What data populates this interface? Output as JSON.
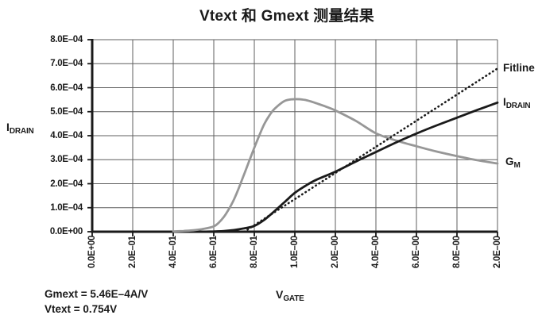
{
  "title": "Vtext 和 Gmext 测量结果",
  "colors": {
    "text": "#1a1a1a",
    "grid": "#5f5f5f",
    "axis": "#1a1a1a",
    "idrain_curve": "#1a1a1a",
    "gm_curve": "#979797",
    "fitline": "#1a1a1a",
    "background": "#ffffff"
  },
  "y_axis": {
    "label_main": "I",
    "label_sub": "DRAIN"
  },
  "x_axis": {
    "label_main": "V",
    "label_sub": "GATE"
  },
  "legend": [
    {
      "id": "fitline",
      "main": "Fitline",
      "sub": ""
    },
    {
      "id": "idrain",
      "main": "I",
      "sub": "DRAIN"
    },
    {
      "id": "gm",
      "main": "G",
      "sub": "M"
    }
  ],
  "annotations": {
    "gmext_line": "Gmext = 5.46E–4A/V",
    "vtext_line": "Vtext = 0.754V"
  },
  "chart_data": {
    "type": "line",
    "title": "Vtext 和 Gmext 测量结果",
    "xlabel": "V_GATE",
    "ylabel": "I_DRAIN",
    "xlim": [
      0.0,
      2.0
    ],
    "ylim": [
      0.0,
      0.0008
    ],
    "grid": true,
    "legend_position": "right-outside",
    "x_tick_labels": [
      "0.0E+00",
      "2.0E–01",
      "4.0E–01",
      "6.0E–01",
      "8.0E–01",
      "1.0E–00",
      "2.0E–00",
      "4.0E–00",
      "6.0E–00",
      "8.0E–00",
      "2.0E–00"
    ],
    "y_tick_labels": [
      "0.0E+00",
      "1.0E–04",
      "2.0E–04",
      "3.0E–04",
      "4.0E–04",
      "5.0E–04",
      "6.0E–04",
      "7.0E–04",
      "8.0E–04"
    ],
    "series": [
      {
        "name": "GM",
        "style": "solid",
        "color": "#979797",
        "x": [
          0.4,
          0.45,
          0.5,
          0.55,
          0.6,
          0.625,
          0.65,
          0.675,
          0.7,
          0.725,
          0.75,
          0.775,
          0.8,
          0.825,
          0.85,
          0.875,
          0.9,
          0.95,
          1.0,
          1.05,
          1.1,
          1.15,
          1.2,
          1.3,
          1.4,
          1.5,
          1.6,
          1.7,
          1.8,
          1.9,
          2.0
        ],
        "y": [
          1e-06,
          3e-06,
          6e-06,
          1.2e-05,
          2.2e-05,
          3.8e-05,
          6.2e-05,
          9.5e-05,
          0.000135,
          0.000185,
          0.00024,
          0.000295,
          0.00035,
          0.000402,
          0.00045,
          0.000485,
          0.000512,
          0.000545,
          0.000552,
          0.000549,
          0.000537,
          0.000522,
          0.000505,
          0.000462,
          0.00041,
          0.00038,
          0.000356,
          0.000334,
          0.000315,
          0.000298,
          0.000284
        ]
      },
      {
        "name": "IDRAIN",
        "style": "solid",
        "color": "#1a1a1a",
        "x": [
          0.55,
          0.6,
          0.65,
          0.7,
          0.75,
          0.8,
          0.85,
          0.9,
          0.95,
          1.0,
          1.05,
          1.1,
          1.2,
          1.3,
          1.4,
          1.5,
          1.6,
          1.7,
          1.8,
          1.9,
          2.0
        ],
        "y": [
          0.0,
          1e-06,
          3e-06,
          7e-06,
          1.4e-05,
          2.4e-05,
          5e-05,
          8.6e-05,
          0.000124,
          0.000162,
          0.00019,
          0.000214,
          0.00025,
          0.000292,
          0.000332,
          0.000372,
          0.000409,
          0.000443,
          0.000475,
          0.000507,
          0.000538
        ]
      },
      {
        "name": "Fitline",
        "style": "dotted",
        "color": "#1a1a1a",
        "x": [
          0.75,
          2.0
        ],
        "y": [
          0.0,
          0.00068
        ]
      }
    ],
    "fit_results": {
      "Gmext": "5.46E–4A/V",
      "Vtext": "0.754V"
    }
  }
}
